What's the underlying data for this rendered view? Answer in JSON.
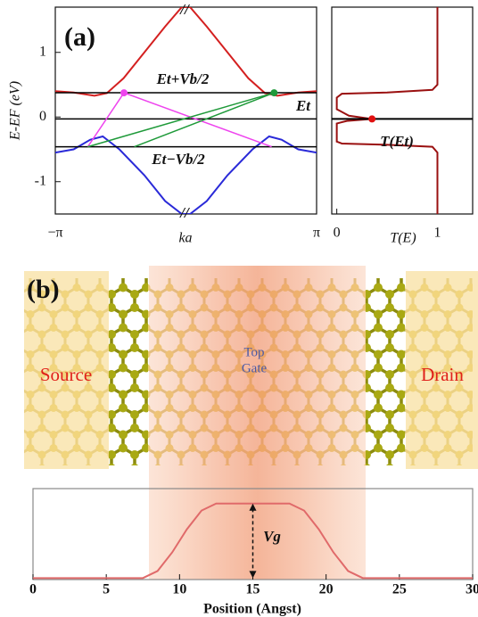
{
  "panel_labels": [
    "(a)",
    "(b)"
  ],
  "device": {
    "source": "Source",
    "drain": "Drain",
    "gate": [
      "Top",
      "Gate"
    ]
  },
  "chart_data": [
    {
      "type": "line",
      "xlabel": "ka",
      "ylabel": "E-EF (eV)",
      "xlim": [
        -3.1416,
        3.1416
      ],
      "xticks": [
        {
          "value": -3.1416,
          "label": "−π"
        },
        {
          "value": 3.1416,
          "label": "π"
        }
      ],
      "ylim": [
        -1.5,
        1.7
      ],
      "yticks": [
        -1,
        0,
        1
      ],
      "annotations": [
        "Et+Vb/2",
        "Et",
        "Et−Vb/2",
        "//"
      ],
      "series": [
        {
          "color": "#d42020",
          "x": [
            -3.1416,
            -2.7,
            -2.2,
            -1.9,
            -1.5,
            -1.0,
            -0.5,
            -0.1,
            0.1,
            0.5,
            1.0,
            1.5,
            1.9,
            2.2,
            2.7,
            3.1416
          ],
          "values": [
            0.4,
            0.38,
            0.33,
            0.37,
            0.6,
            1.0,
            1.4,
            1.7,
            1.7,
            1.4,
            1.0,
            0.6,
            0.37,
            0.33,
            0.38,
            0.4
          ]
        },
        {
          "color": "#2a2ad8",
          "x": [
            -3.1416,
            -2.7,
            -2.3,
            -2.0,
            -1.6,
            -1.0,
            -0.5,
            -0.1,
            0.1,
            0.5,
            1.0,
            1.6,
            2.0,
            2.3,
            2.7,
            3.1416
          ],
          "values": [
            -0.55,
            -0.5,
            -0.35,
            -0.3,
            -0.5,
            -0.9,
            -1.3,
            -1.5,
            -1.5,
            -1.3,
            -0.9,
            -0.5,
            -0.3,
            -0.35,
            -0.5,
            -0.55
          ]
        },
        {
          "color": "#000000",
          "x": [
            -3.1416,
            3.1416
          ],
          "values": [
            0.375,
            0.375
          ]
        },
        {
          "color": "#000000",
          "x": [
            -3.1416,
            3.1416
          ],
          "values": [
            -0.03,
            -0.03
          ]
        },
        {
          "color": "#000000",
          "x": [
            -3.1416,
            3.1416
          ],
          "values": [
            -0.46,
            -0.46
          ]
        },
        {
          "color": "#ee44ee",
          "x": [
            -2.36,
            -1.49,
            2.06
          ],
          "values": [
            -0.46,
            0.375,
            -0.46
          ]
        },
        {
          "color": "#1f9a3a",
          "x": [
            -2.36,
            2.12,
            -1.24
          ],
          "values": [
            -0.46,
            0.375,
            -0.46
          ]
        },
        {
          "color": "#ee44ee",
          "marker": true,
          "x": [
            -1.49
          ],
          "values": [
            0.375
          ]
        },
        {
          "color": "#1f9a3a",
          "marker": true,
          "x": [
            2.12
          ],
          "values": [
            0.375
          ]
        }
      ]
    },
    {
      "type": "line",
      "xlabel": "T(E)",
      "xlim": [
        -0.05,
        1.35
      ],
      "xticks": [
        0,
        1
      ],
      "ylim": [
        -1.5,
        1.7
      ],
      "annotations": [
        "T(Et)"
      ],
      "series": [
        {
          "color": "#9a1010",
          "x": [
            1,
            1,
            0.95,
            0.5,
            0.05,
            0,
            0,
            0.05,
            0.12,
            0.35,
            0.1,
            0,
            0,
            0.05,
            0.5,
            0.95,
            1,
            1
          ],
          "values": [
            1.7,
            0.5,
            0.42,
            0.38,
            0.36,
            0.3,
            0.12,
            0.08,
            0.02,
            -0.03,
            -0.06,
            -0.1,
            -0.38,
            -0.41,
            -0.43,
            -0.46,
            -0.55,
            -1.5
          ]
        },
        {
          "color": "#000000",
          "x": [
            -0.05,
            1.35
          ],
          "values": [
            -0.03,
            -0.03
          ]
        },
        {
          "color": "#e01010",
          "marker": true,
          "x": [
            0.35
          ],
          "values": [
            -0.03
          ]
        }
      ]
    },
    {
      "type": "line",
      "xlabel": "Position (Angst)",
      "xlim": [
        0,
        30
      ],
      "xticks": [
        0,
        5,
        10,
        15,
        20,
        25,
        30
      ],
      "ylim": [
        -0.02,
        1.2
      ],
      "annotations": [
        "Vg"
      ],
      "vg_arrow": {
        "x": 15,
        "values": [
          0,
          1
        ]
      },
      "series": [
        {
          "color": "#e06a6a",
          "x": [
            0,
            7.5,
            8.5,
            9.5,
            10.5,
            11.5,
            12.5,
            17.5,
            18.5,
            19.5,
            20.5,
            21.5,
            22.5,
            30
          ],
          "values": [
            0,
            0,
            0.095,
            0.345,
            0.655,
            0.905,
            1,
            1,
            0.905,
            0.655,
            0.345,
            0.095,
            0,
            0
          ]
        }
      ]
    }
  ]
}
